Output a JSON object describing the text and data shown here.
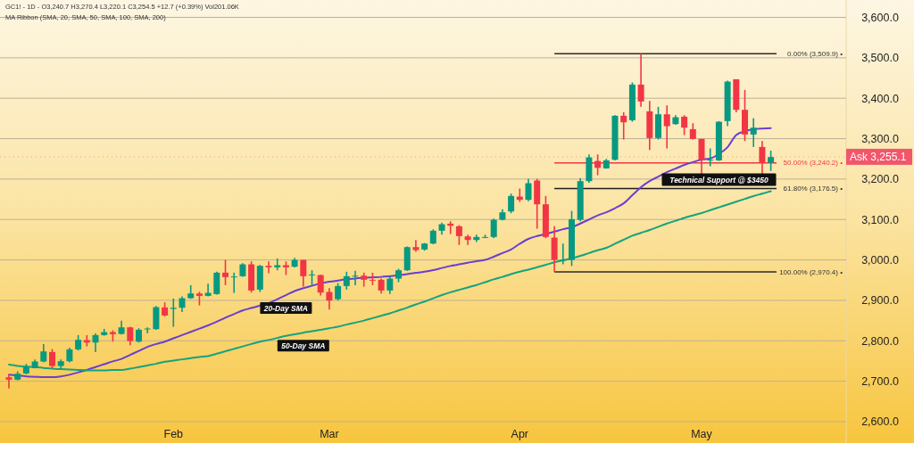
{
  "chart_data": {
    "type": "candlestick",
    "categories": [
      null,
      null,
      null,
      null,
      null,
      null,
      null,
      null,
      null,
      null,
      null,
      null,
      null,
      null,
      null,
      null,
      null,
      null,
      null,
      "Feb",
      null,
      null,
      null,
      null,
      null,
      null,
      null,
      null,
      null,
      null,
      null,
      null,
      null,
      null,
      null,
      null,
      null,
      "Mar",
      null,
      null,
      null,
      null,
      null,
      null,
      null,
      null,
      null,
      null,
      null,
      null,
      null,
      null,
      null,
      null,
      null,
      null,
      null,
      null,
      null,
      "Apr",
      null,
      null,
      null,
      null,
      null,
      null,
      null,
      null,
      null,
      null,
      null,
      null,
      null,
      null,
      null,
      null,
      null,
      null,
      null,
      null,
      "May",
      null,
      null,
      null,
      null,
      null,
      null,
      null,
      null
    ],
    "ohlc": [
      [
        2709.7,
        2717,
        2681.8,
        2703.8
      ],
      [
        2703.8,
        2724.4,
        2702.3,
        2718.5
      ],
      [
        2719.3,
        2742.8,
        2717,
        2735.4
      ],
      [
        2732.5,
        2753.8,
        2731.7,
        2748.7
      ],
      [
        2748.7,
        2792,
        2746.5,
        2773.7
      ],
      [
        2772.2,
        2779.5,
        2731.8,
        2737.6
      ],
      [
        2737.6,
        2753.8,
        2730.3,
        2749.4
      ],
      [
        2749.4,
        2783.2,
        2746.5,
        2778.8
      ],
      [
        2778.8,
        2814.1,
        2775.9,
        2802.3
      ],
      [
        2801.6,
        2814,
        2786.2,
        2795.7
      ],
      [
        2795.7,
        2818.5,
        2772,
        2814.1
      ],
      [
        2814.1,
        2829.5,
        2812.6,
        2821.4
      ],
      [
        2821.4,
        2825.9,
        2797.9,
        2816.3
      ],
      [
        2817,
        2849.4,
        2815.6,
        2833.2
      ],
      [
        2833.2,
        2834.7,
        2789.1,
        2799.4
      ],
      [
        2797.9,
        2831,
        2795.7,
        2827.3
      ],
      [
        2828.8,
        2833.2,
        2818.5,
        2830.3
      ],
      [
        2828.8,
        2886.1,
        2827.3,
        2883.2
      ],
      [
        2882.5,
        2895,
        2860.4,
        2862.6
      ],
      [
        2878.8,
        2904.5,
        2834.7,
        2881.7
      ],
      [
        2881.7,
        2909.7,
        2871.4,
        2905.3
      ],
      [
        2905.3,
        2937.6,
        2903.8,
        2917
      ],
      [
        2917,
        2921.4,
        2887.6,
        2911.1
      ],
      [
        2911.1,
        2941.3,
        2909.7,
        2918.5
      ],
      [
        2915.6,
        2970.7,
        2914.1,
        2968.5
      ],
      [
        2968.5,
        3000.1,
        2937.6,
        2957.5
      ],
      [
        2957.5,
        2968.5,
        2918.5,
        2959
      ],
      [
        2959.7,
        2992,
        2958.2,
        2989.1
      ],
      [
        2989.1,
        2996.4,
        2919.2,
        2924.4
      ],
      [
        2926.6,
        2987.6,
        2920.7,
        2985.4
      ],
      [
        2985.4,
        2996.4,
        2967,
        2981.7
      ],
      [
        2981.7,
        3003.8,
        2974.4,
        2986.9
      ],
      [
        2986.9,
        2996.4,
        2962.6,
        2981.7
      ],
      [
        2983.2,
        3005.2,
        2981.7,
        3000.1
      ],
      [
        3000.1,
        3000.1,
        2933.9,
        2959.7
      ],
      [
        2962.6,
        2974.4,
        2937.6,
        2964.1
      ],
      [
        2962.6,
        2963.3,
        2911.9,
        2919.2
      ],
      [
        2920.7,
        2930.3,
        2877.3,
        2899.4
      ],
      [
        2903.1,
        2942.8,
        2899.4,
        2935.4
      ],
      [
        2935.4,
        2970.7,
        2926.6,
        2959.7
      ],
      [
        2959.7,
        2972.9,
        2937.6,
        2961.1
      ],
      [
        2961.1,
        2968.5,
        2933.9,
        2950.9
      ],
      [
        2950.9,
        2968.5,
        2937.6,
        2949.4
      ],
      [
        2950.9,
        2953.8,
        2917,
        2924.4
      ],
      [
        2924.4,
        2959.7,
        2915.6,
        2953.8
      ],
      [
        2953.8,
        2978.1,
        2945,
        2974.4
      ],
      [
        2974.4,
        3033.2,
        2972.9,
        3031.7
      ],
      [
        3031.7,
        3049.4,
        3020,
        3024.4
      ],
      [
        3025.8,
        3042,
        3022.9,
        3040.5
      ],
      [
        3040.5,
        3075.8,
        3039,
        3072.2
      ],
      [
        3072.2,
        3092,
        3062.6,
        3088.3
      ],
      [
        3089.8,
        3095.7,
        3064.1,
        3084.6
      ],
      [
        3083.2,
        3086.1,
        3036.9,
        3058.9
      ],
      [
        3058.2,
        3062.6,
        3036.9,
        3049.4
      ],
      [
        3049.4,
        3062.6,
        3044.2,
        3056.7
      ],
      [
        3055.3,
        3062.6,
        3053.8,
        3056.7
      ],
      [
        3056.7,
        3102.3,
        3053.8,
        3099.4
      ],
      [
        3099.4,
        3125.1,
        3097.9,
        3117.7
      ],
      [
        3119.9,
        3164.1,
        3115.5,
        3158.2
      ],
      [
        3156.7,
        3176.6,
        3143.5,
        3148.6
      ],
      [
        3148.6,
        3200.8,
        3144.9,
        3189.8
      ],
      [
        3196.4,
        3200.8,
        3077.3,
        3137.6
      ],
      [
        3137.6,
        3158.2,
        3053.8,
        3056.7
      ],
      [
        3055.3,
        3083.2,
        2970.4,
        3000.1
      ],
      [
        2999.9,
        3040.5,
        2989,
        3000.6
      ],
      [
        3000,
        3121.3,
        2985,
        3100.7
      ],
      [
        3099.3,
        3202.2,
        3095.6,
        3194.9
      ],
      [
        3194.9,
        3261,
        3191.2,
        3253.7
      ],
      [
        3244.8,
        3261,
        3209.6,
        3227.9
      ],
      [
        3226.5,
        3250,
        3225.7,
        3246.3
      ],
      [
        3247.8,
        3358,
        3246.3,
        3356.6
      ],
      [
        3356.6,
        3365.4,
        3297.8,
        3340.4
      ],
      [
        3345.6,
        3439,
        3341.9,
        3433.8
      ],
      [
        3433.8,
        3509.9,
        3378.7,
        3391.9
      ],
      [
        3367.6,
        3393.4,
        3272.1,
        3301.5
      ],
      [
        3301.5,
        3378.7,
        3297.8,
        3360.3
      ],
      [
        3360.3,
        3382.3,
        3275.7,
        3330.9
      ],
      [
        3336,
        3358,
        3334.5,
        3352.9
      ],
      [
        3354.4,
        3358,
        3308.8,
        3327.2
      ],
      [
        3323.5,
        3338.2,
        3297.8,
        3299.3
      ],
      [
        3299.3,
        3299.3,
        3211,
        3247.8
      ],
      [
        3247,
        3275.7,
        3231.6,
        3248
      ],
      [
        3246.3,
        3343.4,
        3244.8,
        3341.9
      ],
      [
        3343.4,
        3443.3,
        3330.9,
        3441.1
      ],
      [
        3447,
        3447,
        3365.4,
        3371.3
      ],
      [
        3371.3,
        3420.6,
        3294.1,
        3310.3
      ],
      [
        3310.3,
        3350.7,
        3279.4,
        3327.2
      ],
      [
        3279.4,
        3294.1,
        3213.2,
        3240.4
      ],
      [
        3240.7,
        3270.4,
        3220.1,
        3254.5
      ]
    ],
    "colors": [
      "#f23645",
      "#089981",
      "#089981",
      "#089981",
      "#089981",
      "#f23645",
      "#089981",
      "#089981",
      "#089981",
      "#f23645",
      "#089981",
      "#089981",
      "#f23645",
      "#089981",
      "#f23645",
      "#089981",
      "#089981",
      "#089981",
      "#f23645",
      "#089981",
      "#089981",
      "#089981",
      "#f23645",
      "#089981",
      "#089981",
      "#f23645",
      "#089981",
      "#089981",
      "#f23645",
      "#089981",
      "#f23645",
      "#089981",
      "#f23645",
      "#089981",
      "#f23645",
      "#089981",
      "#f23645",
      "#f23645",
      "#089981",
      "#089981",
      "#089981",
      "#f23645",
      "#f23645",
      "#f23645",
      "#089981",
      "#089981",
      "#089981",
      "#f23645",
      "#089981",
      "#089981",
      "#089981",
      "#f23645",
      "#f23645",
      "#f23645",
      "#089981",
      "#089981",
      "#089981",
      "#089981",
      "#089981",
      "#f23645",
      "#089981",
      "#f23645",
      "#f23645",
      "#f23645",
      "#089981",
      "#089981",
      "#089981",
      "#089981",
      "#f23645",
      "#089981",
      "#089981",
      "#f23645",
      "#089981",
      "#f23645",
      "#f23645",
      "#089981",
      "#f23645",
      "#089981",
      "#f23645",
      "#f23645",
      "#f23645",
      "#089981",
      "#089981",
      "#089981",
      "#f23645",
      "#f23645",
      "#089981",
      "#f23645",
      "#089981"
    ],
    "series": [
      {
        "name": "20-Day SMA",
        "type": "line",
        "color": "#6a3fd0",
        "values": [
          2716,
          2714,
          2712,
          2711,
          2710,
          2710,
          2712,
          2716,
          2722,
          2728,
          2735,
          2742,
          2749,
          2755,
          2765,
          2775,
          2785,
          2792,
          2798,
          2806,
          2814,
          2822,
          2830,
          2838,
          2847,
          2857,
          2866,
          2875,
          2881,
          2887,
          2893,
          2903,
          2913,
          2923,
          2930,
          2936,
          2942,
          2946,
          2949,
          2952,
          2954,
          2956,
          2957,
          2958,
          2960,
          2962,
          2965,
          2968,
          2971,
          2975,
          2980,
          2985,
          2989,
          2993,
          2997,
          3000,
          3008,
          3017,
          3026,
          3040,
          3052,
          3059,
          3064,
          3070,
          3076,
          3081,
          3090,
          3100,
          3110,
          3118,
          3128,
          3140,
          3160,
          3180,
          3195,
          3206,
          3217,
          3226,
          3235,
          3242,
          3248,
          3251,
          3262,
          3279,
          3309,
          3318,
          3323,
          3325,
          3326
        ]
      },
      {
        "name": "50-Day SMA",
        "type": "line",
        "color": "#14a37f",
        "values": [
          2741,
          2738,
          2736,
          2735,
          2733,
          2731,
          2730,
          2729,
          2728,
          2727,
          2727,
          2727,
          2728,
          2728,
          2731,
          2735,
          2739,
          2743,
          2748,
          2751,
          2754,
          2757,
          2760,
          2762,
          2768,
          2774,
          2780,
          2786,
          2792,
          2798,
          2802,
          2807,
          2812,
          2816,
          2820,
          2824,
          2827,
          2831,
          2835,
          2840,
          2845,
          2850,
          2856,
          2862,
          2868,
          2875,
          2882,
          2890,
          2897,
          2905,
          2913,
          2920,
          2926,
          2932,
          2938,
          2945,
          2952,
          2958,
          2965,
          2971,
          2976,
          2982,
          2988,
          2994,
          2999,
          3004,
          3010,
          3017,
          3024,
          3030,
          3040,
          3050,
          3060,
          3067,
          3074,
          3082,
          3090,
          3097,
          3104,
          3110,
          3116,
          3123,
          3130,
          3137,
          3144,
          3151,
          3158,
          3164,
          3170
        ]
      }
    ],
    "ylim": [
      2547,
      3643
    ],
    "yticks": [
      {
        "value": 2600,
        "label": "2,600.0"
      },
      {
        "value": 2700,
        "label": "2,700.0"
      },
      {
        "value": 2800,
        "label": "2,800.0"
      },
      {
        "value": 2900,
        "label": "2,900.0"
      },
      {
        "value": 3000,
        "label": "3,000.0"
      },
      {
        "value": 3100,
        "label": "3,100.0"
      },
      {
        "value": 3200,
        "label": "3,200.0"
      },
      {
        "value": 3300,
        "label": "3,300.0"
      },
      {
        "value": 3400,
        "label": "3,400.0"
      },
      {
        "value": 3500,
        "label": "3,500.0"
      },
      {
        "value": 3600,
        "label": "3,600.0"
      }
    ],
    "grid": "y",
    "ref_lines": [
      {
        "axis": "y",
        "value": 3509.9,
        "label": "0.00% (3,509.9) •",
        "color": "#2b2b2b"
      },
      {
        "axis": "y",
        "value": 3240.2,
        "label": "50.00% (3,240.2) •",
        "color": "#f23645"
      },
      {
        "axis": "y",
        "value": 3176.5,
        "label": "61.80% (3,176.5) •",
        "color": "#1e1e1e"
      },
      {
        "axis": "y",
        "value": 2970.4,
        "label": "100.00% (2,970.4) •",
        "color": "#2b2b2b"
      },
      {
        "axis": "y",
        "value": 3255.1,
        "label": "Ask 3,255.1",
        "color": "#f2566a",
        "line_style": "dotted"
      }
    ],
    "annotations": [
      "GC1! - 1D - O3,240.7 H3,270.4 L3,220.1 C3,254.5 +12.7 (+0.39%) Vol201.06K",
      "MA Ribbon (SMA, 20, SMA, 50, SMA, 100, SMA, 200)",
      "Technical Support @ $3450"
    ]
  }
}
